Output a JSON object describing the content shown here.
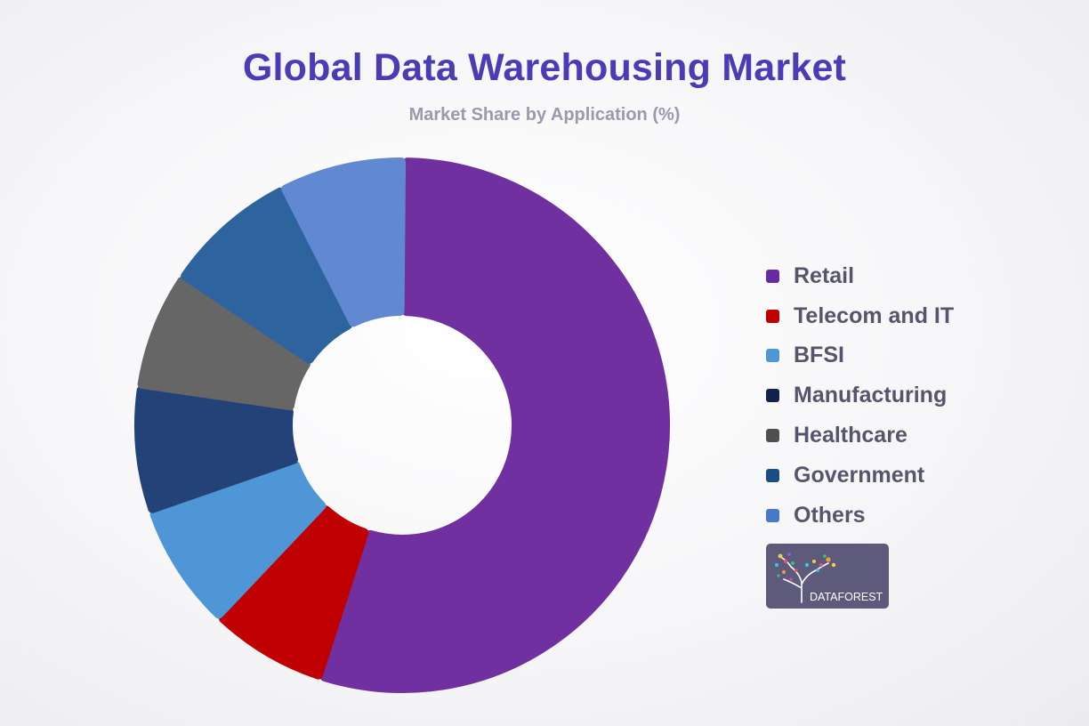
{
  "header": {
    "title": "Global Data Warehousing Market",
    "subtitle": "Market Share by Application (%)"
  },
  "chart_data": {
    "type": "pie",
    "style": "donut",
    "legend_position": "right",
    "categories": [
      "Retail",
      "Telecom and IT",
      "BFSI",
      "Manufacturing",
      "Healthcare",
      "Government",
      "Others"
    ],
    "values": [
      54.0,
      7.0,
      7.5,
      7.5,
      7.0,
      8.0,
      7.5
    ],
    "colors": [
      "#7030a0",
      "#c00000",
      "#4e96d5",
      "#234278",
      "#666666",
      "#2e649d",
      "#6089d1"
    ]
  },
  "legend": {
    "items": [
      {
        "label": "Retail",
        "color": "#6a2ba0"
      },
      {
        "label": "Telecom and IT",
        "color": "#c00000"
      },
      {
        "label": "BFSI",
        "color": "#4e96d5"
      },
      {
        "label": "Manufacturing",
        "color": "#14214d"
      },
      {
        "label": "Healthcare",
        "color": "#505050"
      },
      {
        "label": "Government",
        "color": "#1c4d82"
      },
      {
        "label": "Others",
        "color": "#4a78c8"
      }
    ]
  },
  "logo": {
    "text": "DATAFOREST",
    "icon": "tree-logo-icon"
  }
}
